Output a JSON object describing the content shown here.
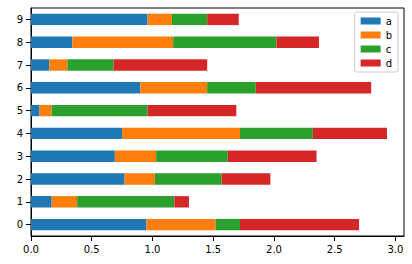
{
  "chart_data": {
    "type": "bar",
    "orientation": "horizontal",
    "stacked": true,
    "grid": false,
    "legend": "upper right",
    "categories": [
      "0",
      "1",
      "2",
      "3",
      "4",
      "5",
      "6",
      "7",
      "8",
      "9"
    ],
    "series": [
      {
        "name": "a",
        "color": "#1f77b4",
        "values": [
          0.95,
          0.17,
          0.77,
          0.69,
          0.75,
          0.07,
          0.9,
          0.15,
          0.34,
          0.96
        ]
      },
      {
        "name": "b",
        "color": "#ff7f0e",
        "values": [
          0.57,
          0.21,
          0.25,
          0.34,
          0.97,
          0.1,
          0.55,
          0.15,
          0.83,
          0.2
        ]
      },
      {
        "name": "c",
        "color": "#2ca02c",
        "values": [
          0.2,
          0.8,
          0.55,
          0.59,
          0.6,
          0.79,
          0.4,
          0.38,
          0.85,
          0.29
        ]
      },
      {
        "name": "d",
        "color": "#d62728",
        "values": [
          0.98,
          0.12,
          0.4,
          0.73,
          0.61,
          0.73,
          0.95,
          0.77,
          0.35,
          0.26
        ]
      }
    ],
    "xlim": [
      0,
      3.07
    ],
    "xticks": [
      {
        "value": 0,
        "label": "0.0"
      },
      0.5,
      {
        "value": 1,
        "label": "1.0"
      },
      1.5,
      {
        "value": 2,
        "label": "2.0"
      },
      2.5,
      {
        "value": 3,
        "label": "3.0"
      }
    ]
  }
}
